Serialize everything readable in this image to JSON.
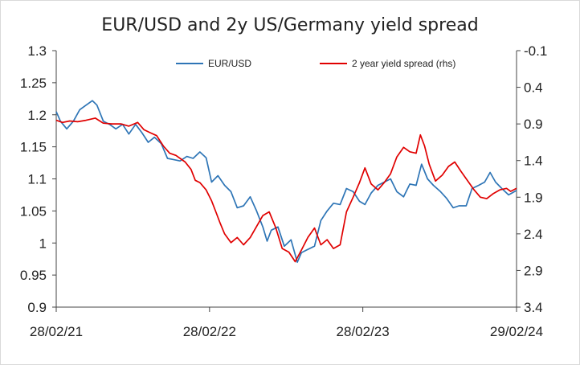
{
  "chart_data": {
    "type": "line",
    "title": "EUR/USD and 2y US/Germany yield spread",
    "x_ticks": [
      "28/02/21",
      "28/02/22",
      "28/02/23",
      "29/02/24"
    ],
    "x_range": [
      "2021-02-28",
      "2024-02-29"
    ],
    "y_left": {
      "ticks": [
        "1.3",
        "1.25",
        "1.2",
        "1.15",
        "1.1",
        "1.05",
        "1",
        "0.95",
        "0.9"
      ],
      "range": [
        0.9,
        1.3
      ]
    },
    "y_right": {
      "ticks": [
        "-0.1",
        "0.4",
        "0.9",
        "1.4",
        "1.9",
        "2.4",
        "2.9",
        "3.4"
      ],
      "range": [
        3.4,
        -0.1
      ],
      "inverted": true
    },
    "legend_placement": "top",
    "series": [
      {
        "name": "EUR/USD",
        "axis": "left",
        "color": "#2e75b6",
        "points": [
          [
            "2021-02-28",
            1.205
          ],
          [
            "2021-03-10",
            1.19
          ],
          [
            "2021-03-25",
            1.178
          ],
          [
            "2021-04-10",
            1.19
          ],
          [
            "2021-04-25",
            1.208
          ],
          [
            "2021-05-10",
            1.215
          ],
          [
            "2021-05-25",
            1.222
          ],
          [
            "2021-06-05",
            1.215
          ],
          [
            "2021-06-20",
            1.19
          ],
          [
            "2021-07-05",
            1.185
          ],
          [
            "2021-07-20",
            1.178
          ],
          [
            "2021-08-05",
            1.185
          ],
          [
            "2021-08-20",
            1.17
          ],
          [
            "2021-09-05",
            1.185
          ],
          [
            "2021-09-20",
            1.172
          ],
          [
            "2021-10-05",
            1.157
          ],
          [
            "2021-10-20",
            1.165
          ],
          [
            "2021-11-05",
            1.155
          ],
          [
            "2021-11-20",
            1.132
          ],
          [
            "2021-12-05",
            1.13
          ],
          [
            "2021-12-20",
            1.128
          ],
          [
            "2022-01-05",
            1.135
          ],
          [
            "2022-01-20",
            1.132
          ],
          [
            "2022-02-05",
            1.142
          ],
          [
            "2022-02-20",
            1.133
          ],
          [
            "2022-03-05",
            1.095
          ],
          [
            "2022-03-20",
            1.105
          ],
          [
            "2022-04-05",
            1.09
          ],
          [
            "2022-04-20",
            1.08
          ],
          [
            "2022-05-05",
            1.055
          ],
          [
            "2022-05-20",
            1.058
          ],
          [
            "2022-06-05",
            1.072
          ],
          [
            "2022-06-20",
            1.05
          ],
          [
            "2022-07-05",
            1.025
          ],
          [
            "2022-07-15",
            1.003
          ],
          [
            "2022-07-25",
            1.02
          ],
          [
            "2022-08-10",
            1.025
          ],
          [
            "2022-08-25",
            0.995
          ],
          [
            "2022-09-10",
            1.005
          ],
          [
            "2022-09-25",
            0.97
          ],
          [
            "2022-10-05",
            0.985
          ],
          [
            "2022-10-20",
            0.99
          ],
          [
            "2022-11-05",
            0.995
          ],
          [
            "2022-11-20",
            1.035
          ],
          [
            "2022-12-05",
            1.05
          ],
          [
            "2022-12-20",
            1.062
          ],
          [
            "2023-01-05",
            1.06
          ],
          [
            "2023-01-20",
            1.085
          ],
          [
            "2023-02-05",
            1.08
          ],
          [
            "2023-02-20",
            1.065
          ],
          [
            "2023-03-05",
            1.06
          ],
          [
            "2023-03-20",
            1.078
          ],
          [
            "2023-04-05",
            1.09
          ],
          [
            "2023-04-20",
            1.095
          ],
          [
            "2023-05-05",
            1.1
          ],
          [
            "2023-05-20",
            1.08
          ],
          [
            "2023-06-05",
            1.072
          ],
          [
            "2023-06-20",
            1.092
          ],
          [
            "2023-07-05",
            1.09
          ],
          [
            "2023-07-18",
            1.123
          ],
          [
            "2023-08-01",
            1.1
          ],
          [
            "2023-08-15",
            1.09
          ],
          [
            "2023-09-01",
            1.08
          ],
          [
            "2023-09-15",
            1.07
          ],
          [
            "2023-10-01",
            1.055
          ],
          [
            "2023-10-15",
            1.058
          ],
          [
            "2023-11-01",
            1.058
          ],
          [
            "2023-11-15",
            1.085
          ],
          [
            "2023-12-01",
            1.09
          ],
          [
            "2023-12-15",
            1.095
          ],
          [
            "2023-12-28",
            1.11
          ],
          [
            "2024-01-10",
            1.095
          ],
          [
            "2024-01-25",
            1.085
          ],
          [
            "2024-02-10",
            1.075
          ],
          [
            "2024-02-29",
            1.082
          ]
        ]
      },
      {
        "name": "2 year yield spread (rhs)",
        "axis": "right",
        "color": "#e00000",
        "points": [
          [
            "2021-02-28",
            0.85
          ],
          [
            "2021-03-15",
            0.88
          ],
          [
            "2021-04-01",
            0.86
          ],
          [
            "2021-04-20",
            0.87
          ],
          [
            "2021-05-10",
            0.85
          ],
          [
            "2021-06-01",
            0.82
          ],
          [
            "2021-06-20",
            0.89
          ],
          [
            "2021-07-10",
            0.9
          ],
          [
            "2021-08-01",
            0.9
          ],
          [
            "2021-08-20",
            0.93
          ],
          [
            "2021-09-10",
            0.88
          ],
          [
            "2021-09-25",
            0.98
          ],
          [
            "2021-10-10",
            1.02
          ],
          [
            "2021-10-25",
            1.06
          ],
          [
            "2021-11-10",
            1.2
          ],
          [
            "2021-11-25",
            1.3
          ],
          [
            "2021-12-10",
            1.33
          ],
          [
            "2022-01-01",
            1.42
          ],
          [
            "2022-01-15",
            1.52
          ],
          [
            "2022-01-25",
            1.67
          ],
          [
            "2022-02-05",
            1.7
          ],
          [
            "2022-02-20",
            1.8
          ],
          [
            "2022-03-05",
            1.95
          ],
          [
            "2022-03-15",
            2.1
          ],
          [
            "2022-03-25",
            2.25
          ],
          [
            "2022-04-05",
            2.4
          ],
          [
            "2022-04-20",
            2.52
          ],
          [
            "2022-05-05",
            2.45
          ],
          [
            "2022-05-20",
            2.55
          ],
          [
            "2022-06-05",
            2.45
          ],
          [
            "2022-06-20",
            2.3
          ],
          [
            "2022-07-05",
            2.15
          ],
          [
            "2022-07-20",
            2.1
          ],
          [
            "2022-08-05",
            2.32
          ],
          [
            "2022-08-20",
            2.6
          ],
          [
            "2022-09-05",
            2.65
          ],
          [
            "2022-09-20",
            2.78
          ],
          [
            "2022-10-05",
            2.62
          ],
          [
            "2022-10-20",
            2.45
          ],
          [
            "2022-11-05",
            2.32
          ],
          [
            "2022-11-20",
            2.55
          ],
          [
            "2022-12-05",
            2.48
          ],
          [
            "2022-12-20",
            2.6
          ],
          [
            "2023-01-05",
            2.55
          ],
          [
            "2023-01-20",
            2.1
          ],
          [
            "2023-02-05",
            1.9
          ],
          [
            "2023-02-20",
            1.7
          ],
          [
            "2023-03-05",
            1.5
          ],
          [
            "2023-03-20",
            1.72
          ],
          [
            "2023-04-05",
            1.8
          ],
          [
            "2023-04-20",
            1.7
          ],
          [
            "2023-05-05",
            1.58
          ],
          [
            "2023-05-20",
            1.35
          ],
          [
            "2023-06-05",
            1.22
          ],
          [
            "2023-06-20",
            1.28
          ],
          [
            "2023-07-05",
            1.3
          ],
          [
            "2023-07-15",
            1.05
          ],
          [
            "2023-07-25",
            1.2
          ],
          [
            "2023-08-05",
            1.45
          ],
          [
            "2023-08-20",
            1.68
          ],
          [
            "2023-09-05",
            1.6
          ],
          [
            "2023-09-20",
            1.48
          ],
          [
            "2023-10-05",
            1.42
          ],
          [
            "2023-10-20",
            1.55
          ],
          [
            "2023-11-05",
            1.68
          ],
          [
            "2023-11-20",
            1.8
          ],
          [
            "2023-12-05",
            1.9
          ],
          [
            "2023-12-20",
            1.92
          ],
          [
            "2024-01-05",
            1.85
          ],
          [
            "2024-01-20",
            1.8
          ],
          [
            "2024-02-05",
            1.78
          ],
          [
            "2024-02-15",
            1.82
          ],
          [
            "2024-02-29",
            1.78
          ]
        ]
      }
    ]
  }
}
